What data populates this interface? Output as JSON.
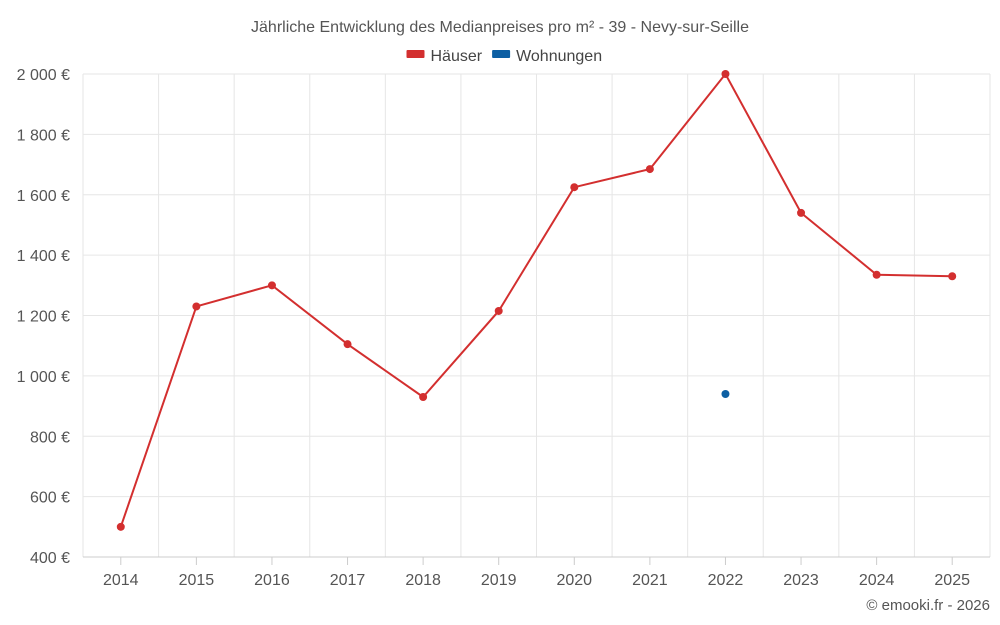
{
  "chart_data": {
    "type": "line",
    "title": "Jährliche Entwicklung des Medianpreises pro m² - 39 - Nevy-sur-Seille",
    "x": [
      "2014",
      "2015",
      "2016",
      "2017",
      "2018",
      "2019",
      "2020",
      "2021",
      "2022",
      "2023",
      "2024",
      "2025"
    ],
    "ylim": [
      400,
      2000
    ],
    "y_ticks": [
      400,
      600,
      800,
      1000,
      1200,
      1400,
      1600,
      1800,
      2000
    ],
    "y_tick_labels": [
      "400 €",
      "600 €",
      "800 €",
      "1 000 €",
      "1 200 €",
      "1 400 €",
      "1 600 €",
      "1 800 €",
      "2 000 €"
    ],
    "legend_position": "top-center",
    "grid": true,
    "series": [
      {
        "name": "Häuser",
        "color": "#d32f2f",
        "values": [
          500,
          1230,
          1300,
          1105,
          930,
          1215,
          1625,
          1685,
          2000,
          1540,
          1335,
          1330
        ]
      },
      {
        "name": "Wohnungen",
        "color": "#0d5fa3",
        "values": [
          null,
          null,
          null,
          null,
          null,
          null,
          null,
          null,
          940,
          null,
          null,
          null
        ]
      }
    ],
    "credit": "© emooki.fr - 2026"
  }
}
